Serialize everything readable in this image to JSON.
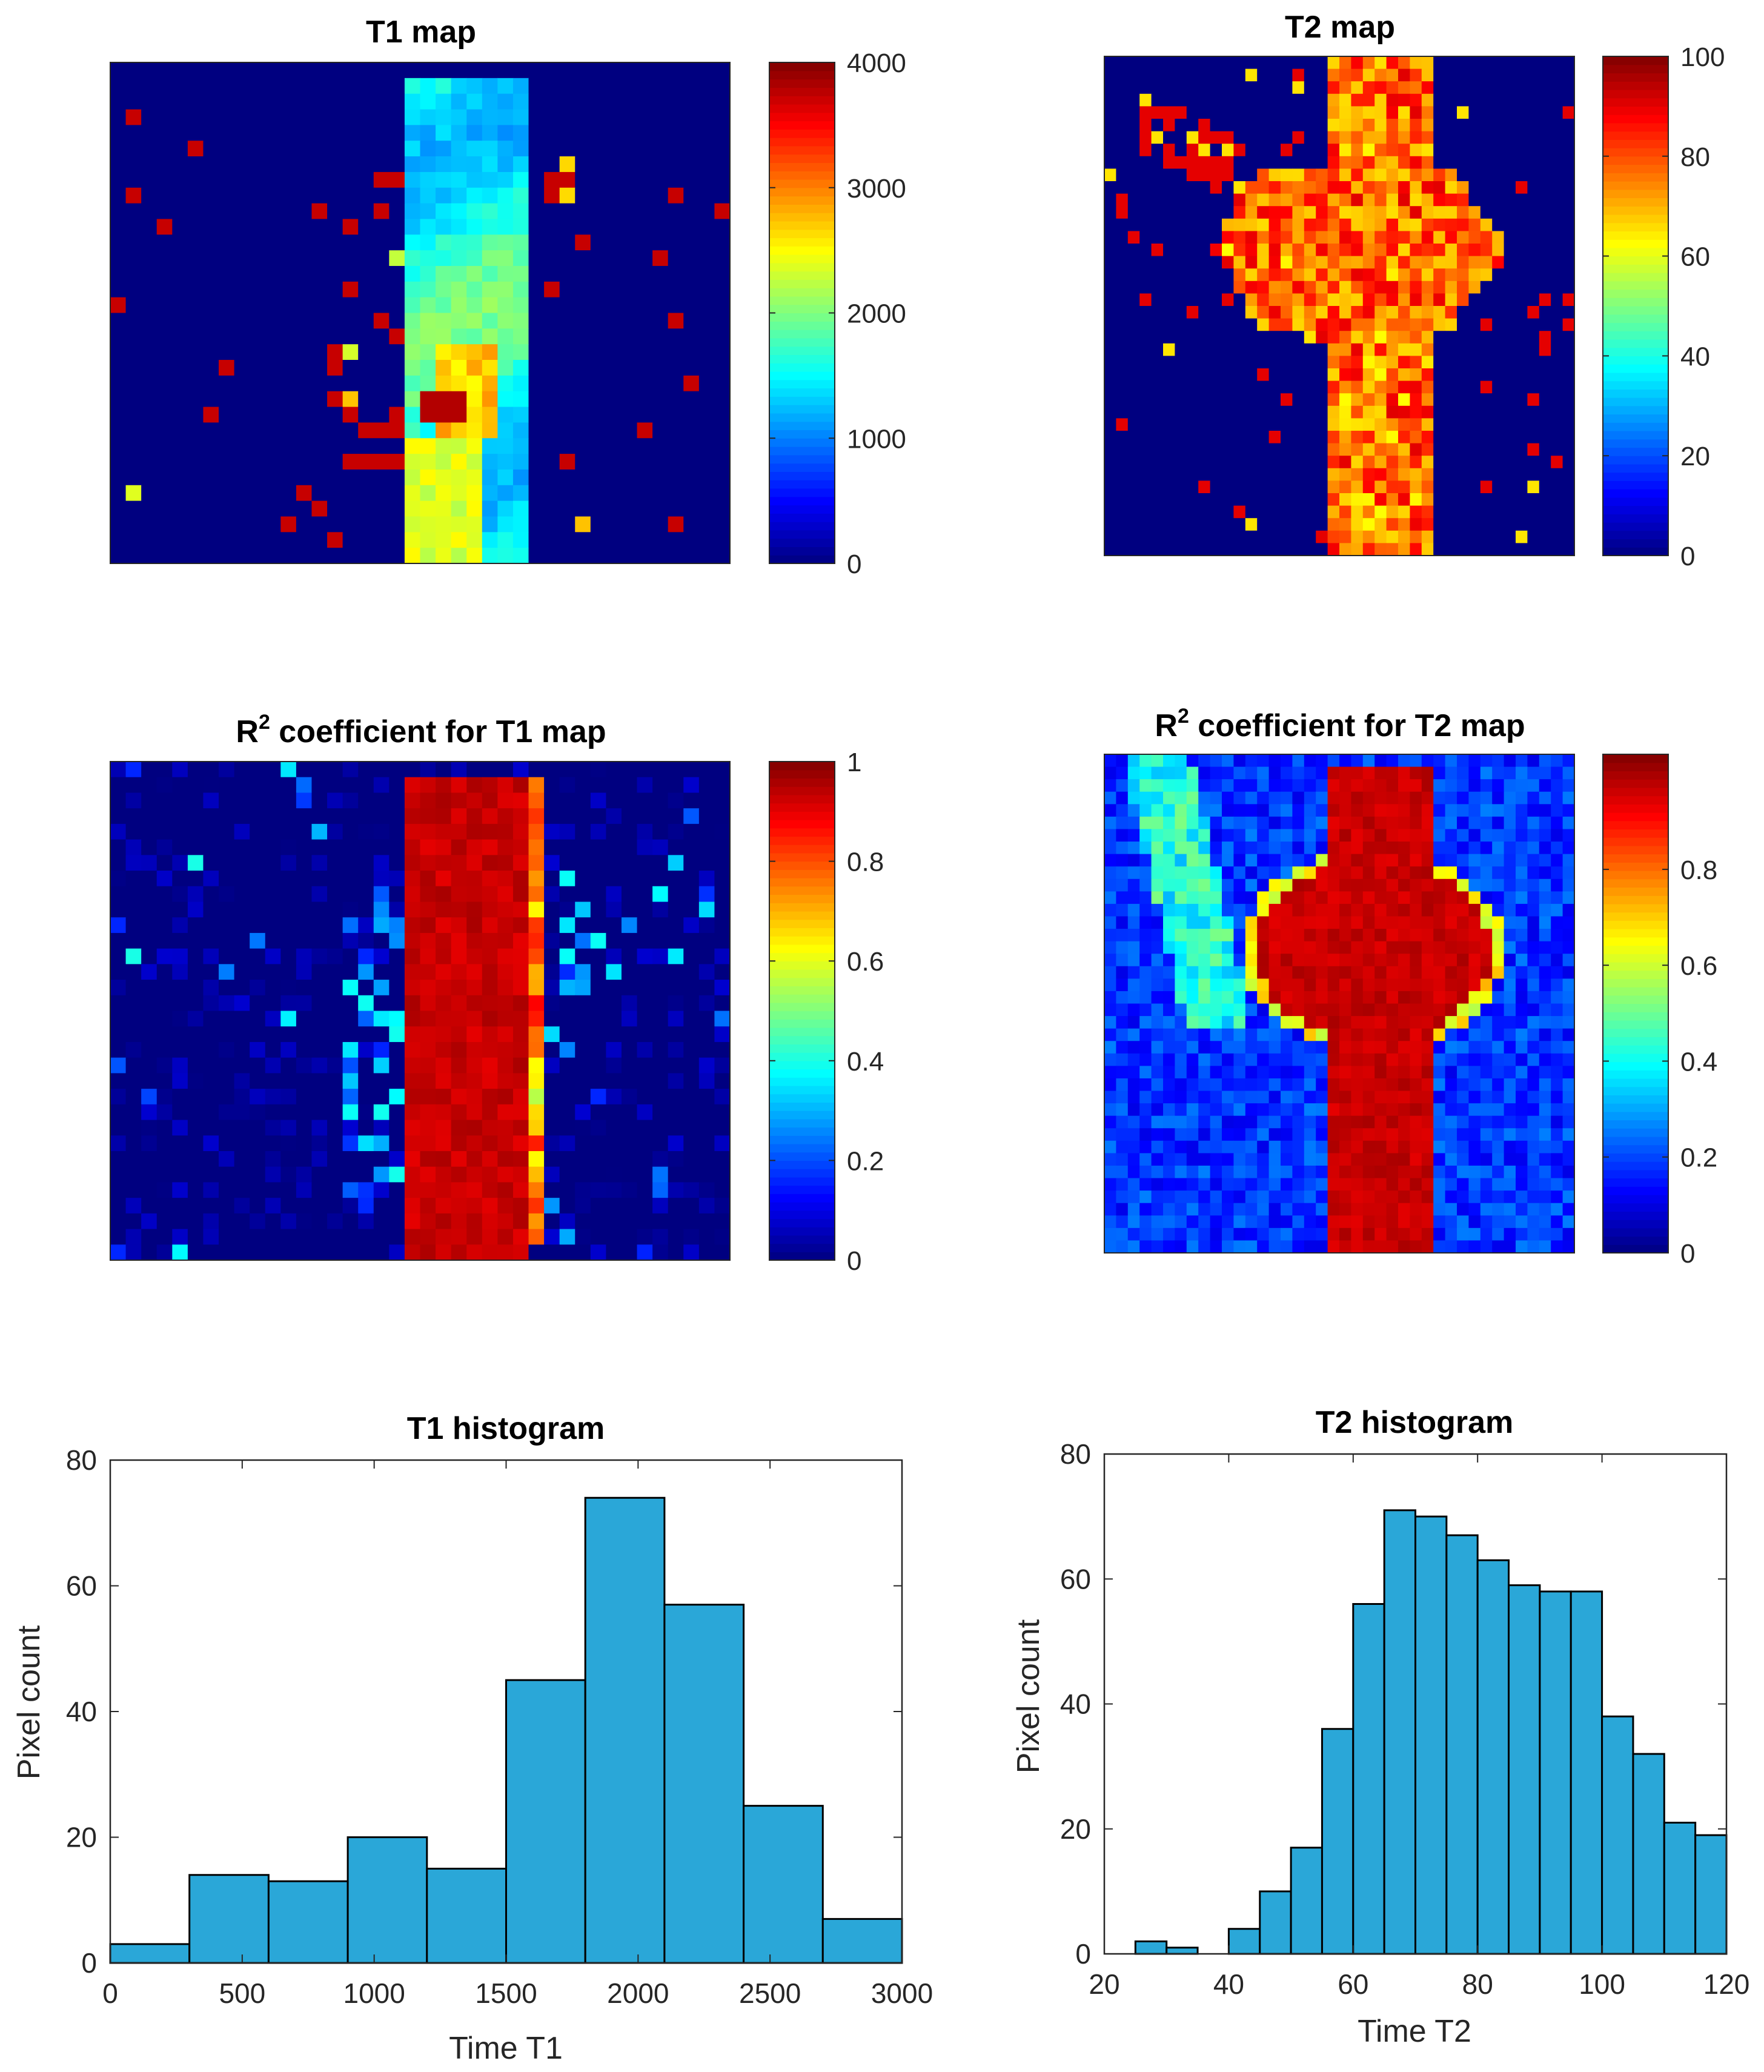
{
  "figure": {
    "colors": {
      "background": "#ffffff",
      "map_background": "#00008f",
      "bar_fill": "#2aa7d8",
      "bar_edge": "#000000",
      "axis": "#262626"
    }
  },
  "chart_data": [
    {
      "type": "heatmap",
      "id": "t1_map",
      "title": "T1 map",
      "colormap": "jet",
      "clim": [
        0,
        4000
      ],
      "colorbar_ticks": [
        "0",
        "1000",
        "2000",
        "3000",
        "4000"
      ],
      "colorbar_values": [
        0,
        1000,
        2000,
        3000,
        4000
      ],
      "grid": [
        40,
        32
      ],
      "description_values": "central vertical band of ~1500-2500 values, scattered high (~4000) pixels"
    },
    {
      "type": "heatmap",
      "id": "t2_map",
      "title": "T2 map",
      "colormap": "jet",
      "clim": [
        0,
        100
      ],
      "colorbar_ticks": [
        "0",
        "20",
        "40",
        "60",
        "80",
        "100"
      ],
      "colorbar_values": [
        0,
        20,
        40,
        60,
        80,
        100
      ],
      "grid": [
        40,
        40
      ]
    },
    {
      "type": "heatmap",
      "id": "r2_t1",
      "title_prefix": "R",
      "title_sup": "2",
      "title_suffix": " coefficient for T1 map",
      "colormap": "jet",
      "clim": [
        0,
        1
      ],
      "colorbar_ticks": [
        "0",
        "0.2",
        "0.4",
        "0.6",
        "0.8",
        "1"
      ],
      "colorbar_values": [
        0,
        0.2,
        0.4,
        0.6,
        0.8,
        1
      ],
      "grid": [
        40,
        32
      ]
    },
    {
      "type": "heatmap",
      "id": "r2_t2",
      "title_prefix": "R",
      "title_sup": "2",
      "title_suffix": " coefficient for T2 map",
      "colormap": "jet",
      "clim": [
        0,
        1
      ],
      "colorbar_ticks": [
        "0",
        "0.2",
        "0.4",
        "0.6",
        "0.8"
      ],
      "colorbar_values": [
        0,
        0.2,
        0.4,
        0.6,
        0.8
      ],
      "grid": [
        40,
        40
      ]
    },
    {
      "type": "bar",
      "id": "t1_hist",
      "title": "T1 histogram",
      "xlabel": "Time T1",
      "ylabel": "Pixel count",
      "xlim": [
        0,
        3000
      ],
      "ylim": [
        0,
        80
      ],
      "xticks": [
        0,
        500,
        1000,
        1500,
        2000,
        2500,
        3000
      ],
      "yticks": [
        0,
        20,
        40,
        60,
        80
      ],
      "bin_edges": [
        0,
        300,
        600,
        900,
        1200,
        1500,
        1800,
        2100,
        2400,
        2700,
        3000
      ],
      "values": [
        3,
        14,
        13,
        20,
        15,
        45,
        74,
        57,
        25,
        7
      ]
    },
    {
      "type": "bar",
      "id": "t2_hist",
      "title": "T2 histogram",
      "xlabel": "Time T2",
      "ylabel": "Pixel count",
      "xlim": [
        20,
        120
      ],
      "ylim": [
        0,
        80
      ],
      "xticks": [
        20,
        40,
        60,
        80,
        100,
        120
      ],
      "yticks": [
        0,
        20,
        40,
        60,
        80
      ],
      "bin_start": 25,
      "bin_width": 5,
      "values": [
        2,
        1,
        0,
        4,
        10,
        17,
        36,
        56,
        71,
        70,
        67,
        63,
        59,
        58,
        58,
        38,
        32,
        21,
        19
      ]
    }
  ]
}
